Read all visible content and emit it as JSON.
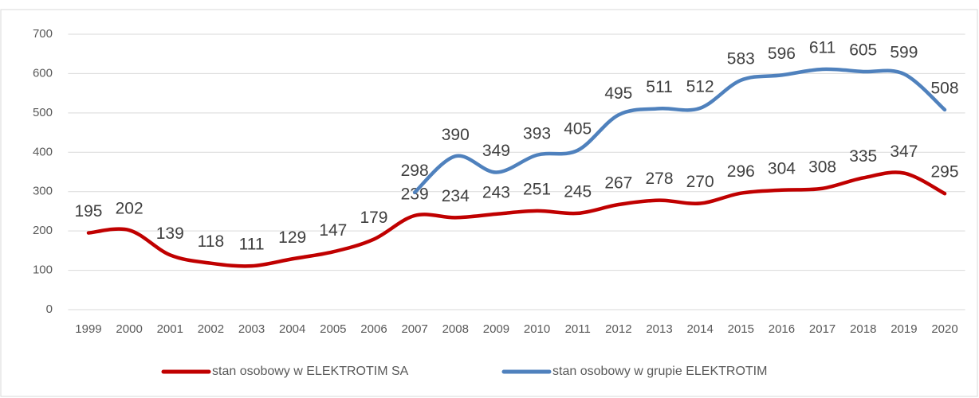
{
  "chart_data": {
    "type": "line",
    "categories": [
      "1999",
      "2000",
      "2001",
      "2002",
      "2003",
      "2004",
      "2005",
      "2006",
      "2007",
      "2008",
      "2009",
      "2010",
      "2011",
      "2012",
      "2013",
      "2014",
      "2015",
      "2016",
      "2017",
      "2018",
      "2019",
      "2020"
    ],
    "series": [
      {
        "name": "stan osobowy w ELEKTROTIM SA",
        "color": "#c00000",
        "values": [
          195,
          202,
          139,
          118,
          111,
          129,
          147,
          179,
          239,
          234,
          243,
          251,
          245,
          267,
          278,
          270,
          296,
          304,
          308,
          335,
          347,
          295
        ]
      },
      {
        "name": "stan osobowy w grupie ELEKTROTIM",
        "color": "#4f81bd",
        "values": [
          null,
          null,
          null,
          null,
          null,
          null,
          null,
          null,
          298,
          390,
          349,
          393,
          405,
          495,
          511,
          512,
          583,
          596,
          611,
          605,
          599,
          508
        ]
      }
    ],
    "ylim": [
      0,
      700
    ],
    "yticks": [
      0,
      100,
      200,
      300,
      400,
      500,
      600,
      700
    ],
    "grid": true,
    "legend": "bottom",
    "smooth": true
  }
}
